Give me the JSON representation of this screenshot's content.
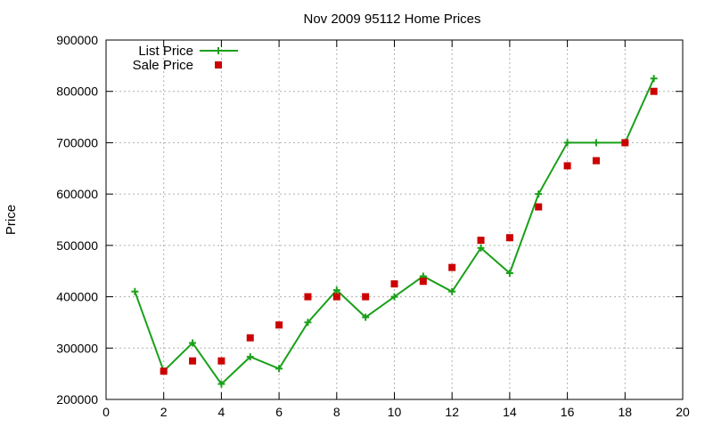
{
  "chart_data": {
    "type": "line",
    "title": "Nov 2009 95112 Home Prices",
    "xlabel": "",
    "ylabel": "Price",
    "xlim": [
      0,
      20
    ],
    "ylim": [
      200000,
      900000
    ],
    "xticks": [
      0,
      2,
      4,
      6,
      8,
      10,
      12,
      14,
      16,
      18,
      20
    ],
    "yticks": [
      200000,
      300000,
      400000,
      500000,
      600000,
      700000,
      800000,
      900000
    ],
    "grid": true,
    "legend_position": "top-left",
    "series": [
      {
        "name": "List Price",
        "style": "line-points",
        "marker": "plus",
        "color": "#1aa01a",
        "x": [
          1,
          2,
          3,
          4,
          5,
          6,
          7,
          8,
          9,
          10,
          11,
          12,
          13,
          14,
          15,
          16,
          17,
          18,
          19
        ],
        "y": [
          410000,
          255000,
          310000,
          230000,
          283000,
          260000,
          350000,
          413000,
          360000,
          400000,
          440000,
          410000,
          495000,
          446000,
          600000,
          700000,
          700000,
          700000,
          825000
        ]
      },
      {
        "name": "Sale Price",
        "style": "points",
        "marker": "square",
        "color": "#cc0000",
        "x": [
          2,
          3,
          4,
          5,
          6,
          7,
          8,
          9,
          10,
          11,
          12,
          13,
          14,
          15,
          16,
          17,
          18,
          19
        ],
        "y": [
          255000,
          275000,
          275000,
          320000,
          345000,
          400000,
          400000,
          400000,
          425000,
          430000,
          457000,
          510000,
          515000,
          575000,
          655000,
          665000,
          700000,
          800000
        ]
      }
    ]
  }
}
